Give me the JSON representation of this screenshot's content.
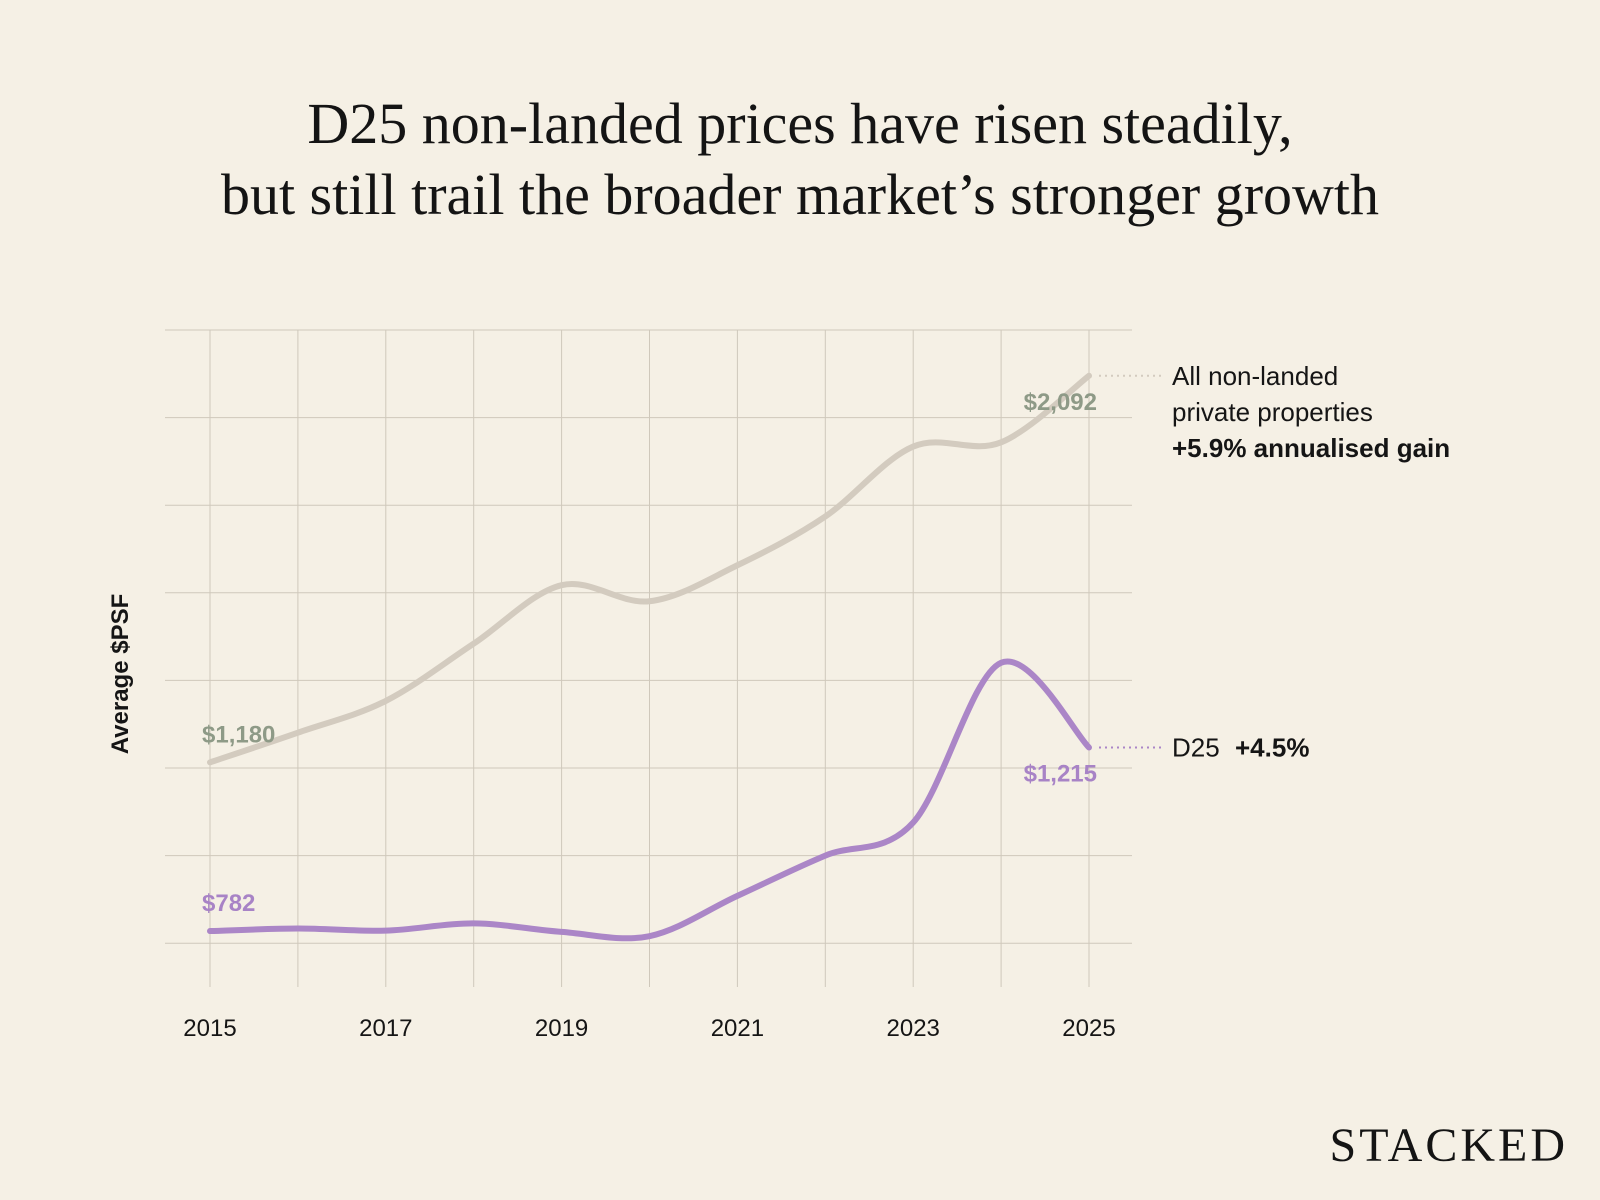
{
  "title_lines": [
    "D25 non-landed prices have risen steadily,",
    "but still trail the broader market’s stronger growth"
  ],
  "brand": "STACKED",
  "colors": {
    "background": "#f5f0e5",
    "all_series": "#d3cbbf",
    "all_label": "#8e9a87",
    "d25_series": "#ab86c7",
    "d25_label": "#a883c6",
    "grid": "#cfc8bb",
    "text": "#151515"
  },
  "chart_data": {
    "type": "line",
    "ylabel": "Average $PSF",
    "xlabel": "",
    "x": [
      2015,
      2016,
      2017,
      2018,
      2019,
      2020,
      2021,
      2022,
      2023,
      2024,
      2025
    ],
    "x_tick_labels": [
      "2015",
      "2017",
      "2019",
      "2021",
      "2023",
      "2025"
    ],
    "ylim": [
      650,
      2200
    ],
    "grid": true,
    "series": [
      {
        "key": "all",
        "values": [
          1180,
          1250,
          1325,
          1460,
          1598,
          1560,
          1645,
          1760,
          1925,
          1935,
          2092
        ],
        "start_label": "$1,180",
        "end_label": "$2,092",
        "legend_lines": [
          "All non-landed",
          "private properties"
        ],
        "legend_gain": "+5.9% annualised gain"
      },
      {
        "key": "d25",
        "values": [
          782,
          788,
          783,
          800,
          780,
          770,
          865,
          960,
          1038,
          1415,
          1215
        ],
        "start_label": "$782",
        "end_label": "$1,215",
        "legend_name": "D25",
        "legend_gain": "+4.5%"
      }
    ]
  }
}
